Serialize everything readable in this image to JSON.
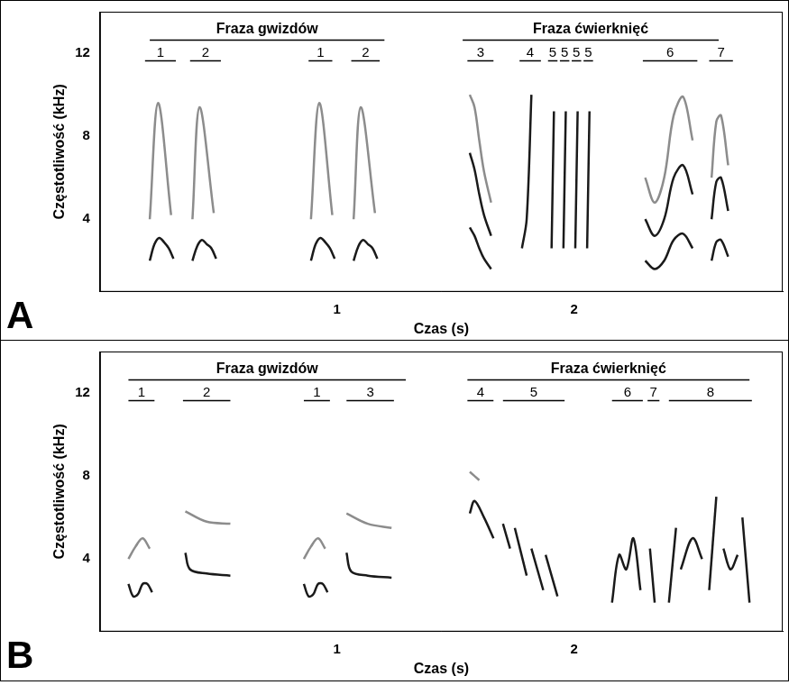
{
  "chart_data": [
    {
      "type": "line",
      "panel": "A",
      "x_label": "Czas (s)",
      "y_label": "Częstotliwość (kHz)",
      "xlim": [
        0,
        2.88
      ],
      "xticks": [
        1,
        2
      ],
      "ylim": [
        0.5,
        14
      ],
      "yticks": [
        4,
        8,
        12
      ],
      "grid": false,
      "phrases": [
        {
          "label": "Fraza gwizdów",
          "start": 0.21,
          "end": 1.2
        },
        {
          "label": "Fraza ćwierknięć",
          "start": 1.53,
          "end": 2.61
        }
      ],
      "syllables": [
        {
          "label": "1",
          "start": 0.19,
          "end": 0.32
        },
        {
          "label": "2",
          "start": 0.38,
          "end": 0.51
        },
        {
          "label": "1",
          "start": 0.88,
          "end": 0.98
        },
        {
          "label": "2",
          "start": 1.06,
          "end": 1.18
        },
        {
          "label": "3",
          "start": 1.55,
          "end": 1.66
        },
        {
          "label": "4",
          "start": 1.77,
          "end": 1.86
        },
        {
          "label": "5",
          "start": 1.89,
          "end": 1.93
        },
        {
          "label": "5",
          "start": 1.94,
          "end": 1.98
        },
        {
          "label": "5",
          "start": 1.99,
          "end": 2.03
        },
        {
          "label": "5",
          "start": 2.04,
          "end": 2.08
        },
        {
          "label": "6",
          "start": 2.29,
          "end": 2.52
        },
        {
          "label": "7",
          "start": 2.57,
          "end": 2.67
        }
      ],
      "traces": [
        {
          "color": "#8c8c8c",
          "x": [
            0.21,
            0.245,
            0.3
          ],
          "values": [
            4.0,
            9.6,
            4.2
          ]
        },
        {
          "color": "#1a1a1a",
          "x": [
            0.21,
            0.23,
            0.25,
            0.27,
            0.29,
            0.31
          ],
          "values": [
            2.0,
            2.8,
            3.1,
            2.9,
            2.6,
            2.1
          ]
        },
        {
          "color": "#8c8c8c",
          "x": [
            0.39,
            0.42,
            0.48
          ],
          "values": [
            4.0,
            9.4,
            4.3
          ]
        },
        {
          "color": "#1a1a1a",
          "x": [
            0.39,
            0.41,
            0.43,
            0.45,
            0.47,
            0.49
          ],
          "values": [
            2.0,
            2.7,
            3.0,
            2.8,
            2.6,
            2.1
          ]
        },
        {
          "color": "#8c8c8c",
          "x": [
            0.89,
            0.925,
            0.98
          ],
          "values": [
            4.0,
            9.6,
            4.2
          ]
        },
        {
          "color": "#1a1a1a",
          "x": [
            0.89,
            0.91,
            0.93,
            0.95,
            0.97,
            0.99
          ],
          "values": [
            2.0,
            2.8,
            3.1,
            2.9,
            2.6,
            2.1
          ]
        },
        {
          "color": "#8c8c8c",
          "x": [
            1.07,
            1.1,
            1.16
          ],
          "values": [
            4.0,
            9.4,
            4.3
          ]
        },
        {
          "color": "#1a1a1a",
          "x": [
            1.07,
            1.09,
            1.11,
            1.13,
            1.15,
            1.17
          ],
          "values": [
            2.0,
            2.7,
            3.0,
            2.8,
            2.6,
            2.1
          ]
        },
        {
          "color": "#8c8c8c",
          "x": [
            1.56,
            1.58,
            1.6,
            1.62,
            1.65
          ],
          "values": [
            10.0,
            9.4,
            7.8,
            6.3,
            4.8
          ]
        },
        {
          "color": "#1a1a1a",
          "x": [
            1.56,
            1.58,
            1.6,
            1.62,
            1.65
          ],
          "values": [
            7.2,
            6.4,
            5.2,
            4.2,
            3.2
          ]
        },
        {
          "color": "#1a1a1a",
          "x": [
            1.56,
            1.58,
            1.6,
            1.62,
            1.65
          ],
          "values": [
            3.6,
            3.2,
            2.6,
            2.1,
            1.6
          ]
        },
        {
          "color": "#1a1a1a",
          "x": [
            1.78,
            1.8,
            1.82
          ],
          "values": [
            2.6,
            4.0,
            10.0
          ]
        },
        {
          "color": "#1a1a1a",
          "x": [
            1.905,
            1.915
          ],
          "values": [
            2.6,
            9.2
          ]
        },
        {
          "color": "#1a1a1a",
          "x": [
            1.955,
            1.965
          ],
          "values": [
            2.6,
            9.2
          ]
        },
        {
          "color": "#1a1a1a",
          "x": [
            2.005,
            2.015
          ],
          "values": [
            2.6,
            9.2
          ]
        },
        {
          "color": "#1a1a1a",
          "x": [
            2.055,
            2.065
          ],
          "values": [
            2.6,
            9.2
          ]
        },
        {
          "color": "#8c8c8c",
          "x": [
            2.3,
            2.34,
            2.38,
            2.42,
            2.46,
            2.5
          ],
          "values": [
            6.0,
            4.8,
            6.0,
            9.0,
            9.9,
            7.8
          ]
        },
        {
          "color": "#1a1a1a",
          "x": [
            2.3,
            2.34,
            2.38,
            2.42,
            2.46,
            2.5
          ],
          "values": [
            4.0,
            3.2,
            4.0,
            6.0,
            6.6,
            5.2
          ]
        },
        {
          "color": "#1a1a1a",
          "x": [
            2.3,
            2.34,
            2.38,
            2.42,
            2.46,
            2.5
          ],
          "values": [
            2.0,
            1.6,
            2.0,
            3.0,
            3.3,
            2.6
          ]
        },
        {
          "color": "#8c8c8c",
          "x": [
            2.58,
            2.6,
            2.62,
            2.65
          ],
          "values": [
            6.0,
            8.7,
            9.0,
            6.6
          ]
        },
        {
          "color": "#1a1a1a",
          "x": [
            2.58,
            2.6,
            2.62,
            2.65
          ],
          "values": [
            4.0,
            5.8,
            6.0,
            4.4
          ]
        },
        {
          "color": "#1a1a1a",
          "x": [
            2.58,
            2.6,
            2.62,
            2.65
          ],
          "values": [
            2.0,
            2.9,
            3.0,
            2.2
          ]
        }
      ]
    },
    {
      "type": "line",
      "panel": "B",
      "x_label": "Czas (s)",
      "y_label": "Częstotliwość (kHz)",
      "xlim": [
        0,
        2.88
      ],
      "xticks": [
        1,
        2
      ],
      "ylim": [
        0.5,
        14
      ],
      "yticks": [
        4,
        8,
        12
      ],
      "grid": false,
      "phrases": [
        {
          "label": "Fraza gwizdów",
          "start": 0.12,
          "end": 1.29
        },
        {
          "label": "Fraza ćwierknięć",
          "start": 1.55,
          "end": 2.74
        }
      ],
      "syllables": [
        {
          "label": "1",
          "start": 0.12,
          "end": 0.23
        },
        {
          "label": "2",
          "start": 0.35,
          "end": 0.55
        },
        {
          "label": "1",
          "start": 0.86,
          "end": 0.97
        },
        {
          "label": "3",
          "start": 1.04,
          "end": 1.24
        },
        {
          "label": "4",
          "start": 1.55,
          "end": 1.66
        },
        {
          "label": "5",
          "start": 1.7,
          "end": 1.96
        },
        {
          "label": "6",
          "start": 2.16,
          "end": 2.29
        },
        {
          "label": "7",
          "start": 2.31,
          "end": 2.36
        },
        {
          "label": "8",
          "start": 2.4,
          "end": 2.75
        }
      ],
      "traces": [
        {
          "color": "#8c8c8c",
          "x": [
            0.12,
            0.15,
            0.18,
            0.21
          ],
          "values": [
            4.0,
            4.6,
            5.0,
            4.5
          ]
        },
        {
          "color": "#1a1a1a",
          "x": [
            0.12,
            0.14,
            0.16,
            0.18,
            0.2,
            0.22
          ],
          "values": [
            2.8,
            2.2,
            2.3,
            2.8,
            2.8,
            2.4
          ]
        },
        {
          "color": "#8c8c8c",
          "x": [
            0.36,
            0.45,
            0.55
          ],
          "values": [
            6.3,
            5.8,
            5.7
          ]
        },
        {
          "color": "#1a1a1a",
          "x": [
            0.36,
            0.38,
            0.45,
            0.55
          ],
          "values": [
            4.3,
            3.5,
            3.3,
            3.2
          ]
        },
        {
          "color": "#8c8c8c",
          "x": [
            0.86,
            0.89,
            0.92,
            0.95
          ],
          "values": [
            4.0,
            4.6,
            5.0,
            4.5
          ]
        },
        {
          "color": "#1a1a1a",
          "x": [
            0.86,
            0.88,
            0.9,
            0.92,
            0.94,
            0.96
          ],
          "values": [
            2.8,
            2.2,
            2.3,
            2.8,
            2.8,
            2.4
          ]
        },
        {
          "color": "#8c8c8c",
          "x": [
            1.04,
            1.13,
            1.23
          ],
          "values": [
            6.2,
            5.7,
            5.5
          ]
        },
        {
          "color": "#1a1a1a",
          "x": [
            1.04,
            1.06,
            1.13,
            1.23
          ],
          "values": [
            4.3,
            3.4,
            3.2,
            3.1
          ]
        },
        {
          "color": "#8c8c8c",
          "x": [
            1.56,
            1.6
          ],
          "values": [
            8.2,
            7.8
          ]
        },
        {
          "color": "#1a1a1a",
          "x": [
            1.56,
            1.58,
            1.62,
            1.66
          ],
          "values": [
            6.2,
            6.8,
            6.0,
            5.0
          ]
        },
        {
          "color": "#1a1a1a",
          "x": [
            1.7,
            1.73
          ],
          "values": [
            5.7,
            4.5
          ]
        },
        {
          "color": "#1a1a1a",
          "x": [
            1.75,
            1.8
          ],
          "values": [
            5.5,
            3.2
          ]
        },
        {
          "color": "#1a1a1a",
          "x": [
            1.82,
            1.87
          ],
          "values": [
            4.5,
            2.5
          ]
        },
        {
          "color": "#1a1a1a",
          "x": [
            1.88,
            1.93
          ],
          "values": [
            4.2,
            2.2
          ]
        },
        {
          "color": "#1a1a1a",
          "x": [
            2.16,
            2.19,
            2.22,
            2.25,
            2.28
          ],
          "values": [
            1.9,
            4.2,
            3.5,
            5.0,
            2.5
          ]
        },
        {
          "color": "#1a1a1a",
          "x": [
            2.32,
            2.34
          ],
          "values": [
            4.5,
            1.9
          ]
        },
        {
          "color": "#1a1a1a",
          "x": [
            2.4,
            2.43
          ],
          "values": [
            1.9,
            5.5
          ]
        },
        {
          "color": "#1a1a1a",
          "x": [
            2.45,
            2.5,
            2.54
          ],
          "values": [
            3.5,
            5.0,
            4.0
          ]
        },
        {
          "color": "#1a1a1a",
          "x": [
            2.57,
            2.6
          ],
          "values": [
            2.5,
            7.0
          ]
        },
        {
          "color": "#1a1a1a",
          "x": [
            2.63,
            2.66,
            2.69
          ],
          "values": [
            4.5,
            3.5,
            4.2
          ]
        },
        {
          "color": "#1a1a1a",
          "x": [
            2.71,
            2.74
          ],
          "values": [
            6.0,
            1.9
          ]
        }
      ]
    }
  ]
}
